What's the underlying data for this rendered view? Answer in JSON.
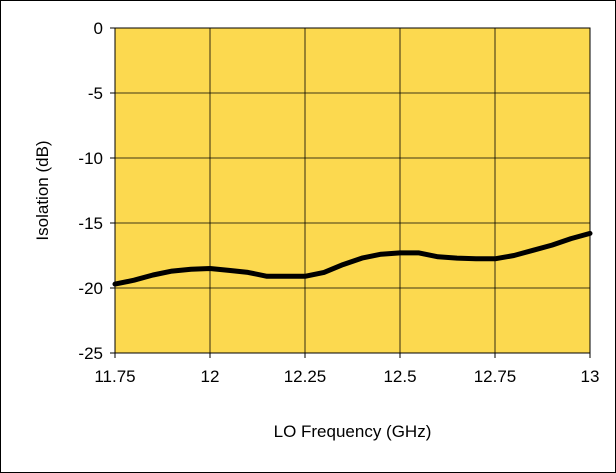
{
  "chart_data": {
    "type": "line",
    "title": "",
    "xlabel": "LO Frequency (GHz)",
    "ylabel": "Isolation (dB)",
    "xlim": [
      11.75,
      13
    ],
    "ylim": [
      -25,
      0
    ],
    "x_ticks": [
      "11.75",
      "12",
      "12.25",
      "12.5",
      "12.75",
      "13"
    ],
    "y_ticks": [
      "0",
      "-5",
      "-10",
      "-15",
      "-20",
      "-25"
    ],
    "grid": true,
    "legend": "none",
    "plot_background": "#FCD94F",
    "series": [
      {
        "color": "#000000",
        "x": [
          11.75,
          11.8,
          11.85,
          11.9,
          11.95,
          12.0,
          12.05,
          12.1,
          12.15,
          12.2,
          12.25,
          12.3,
          12.35,
          12.4,
          12.45,
          12.5,
          12.55,
          12.6,
          12.65,
          12.7,
          12.75,
          12.8,
          12.85,
          12.9,
          12.95,
          13.0
        ],
        "y": [
          -19.7,
          -19.4,
          -19.0,
          -18.7,
          -18.55,
          -18.5,
          -18.65,
          -18.8,
          -19.1,
          -19.1,
          -19.1,
          -18.8,
          -18.2,
          -17.7,
          -17.4,
          -17.3,
          -17.3,
          -17.6,
          -17.7,
          -17.75,
          -17.75,
          -17.5,
          -17.1,
          -16.7,
          -16.2,
          -15.8
        ]
      }
    ]
  }
}
